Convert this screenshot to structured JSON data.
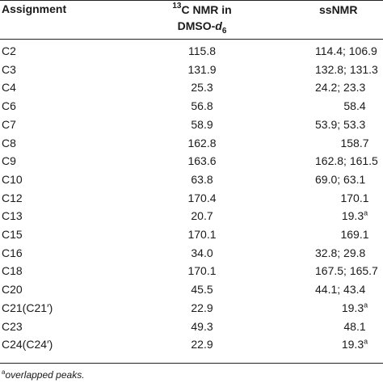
{
  "table": {
    "headers": {
      "assignment": "Assignment",
      "dmso_sup": "13",
      "dmso_line1": "C NMR in",
      "dmso_line2": "DMSO-",
      "dmso_italic": "d",
      "dmso_sub": "6",
      "ssnmr": "ssNMR"
    },
    "rows": [
      {
        "assignment": "C2",
        "dmso": "115.8",
        "ssnmr": "114.4; 106.9",
        "ss_sup": ""
      },
      {
        "assignment": "C3",
        "dmso": "131.9",
        "ssnmr": "132.8; 131.3",
        "ss_sup": ""
      },
      {
        "assignment": "C4",
        "dmso": "25.3",
        "ssnmr": "24.2; 23.3",
        "ss_sup": ""
      },
      {
        "assignment": "C6",
        "dmso": "56.8",
        "ssnmr": "58.4",
        "ss_sup": ""
      },
      {
        "assignment": "C7",
        "dmso": "58.9",
        "ssnmr": "53.9; 53.3",
        "ss_sup": ""
      },
      {
        "assignment": "C8",
        "dmso": "162.8",
        "ssnmr": "158.7",
        "ss_sup": ""
      },
      {
        "assignment": "C9",
        "dmso": "163.6",
        "ssnmr": "162.8; 161.5",
        "ss_sup": ""
      },
      {
        "assignment": "C10",
        "dmso": "63.8",
        "ssnmr": "69.0; 63.1",
        "ss_sup": ""
      },
      {
        "assignment": "C12",
        "dmso": "170.4",
        "ssnmr": "170.1",
        "ss_sup": ""
      },
      {
        "assignment": "C13",
        "dmso": "20.7",
        "ssnmr": "19.3",
        "ss_sup": "a"
      },
      {
        "assignment": "C15",
        "dmso": "170.1",
        "ssnmr": "169.1",
        "ss_sup": ""
      },
      {
        "assignment": "C16",
        "dmso": "34.0",
        "ssnmr": "32.8; 29.8",
        "ss_sup": ""
      },
      {
        "assignment": "C18",
        "dmso": "170.1",
        "ssnmr": "167.5; 165.7",
        "ss_sup": ""
      },
      {
        "assignment": "C20",
        "dmso": "45.5",
        "ssnmr": "44.1; 43.4",
        "ss_sup": ""
      },
      {
        "assignment": "C21(C21′)",
        "dmso": "22.9",
        "ssnmr": "19.3",
        "ss_sup": "a"
      },
      {
        "assignment": "C23",
        "dmso": "49.3",
        "ssnmr": "48.1",
        "ss_sup": ""
      },
      {
        "assignment": "C24(C24′)",
        "dmso": "22.9",
        "ssnmr": "19.3",
        "ss_sup": "a"
      }
    ],
    "footnote_mark": "a",
    "footnote_text": "overlapped peaks."
  }
}
